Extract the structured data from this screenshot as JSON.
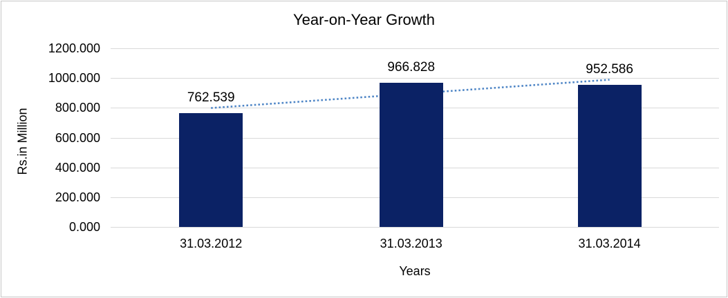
{
  "frame": {
    "border_color": "#c6c6c6",
    "background_color": "#ffffff"
  },
  "chart_data": {
    "type": "bar",
    "title": "Year-on-Year Growth",
    "xlabel": "Years",
    "ylabel": "Rs.in Million",
    "categories": [
      "31.03.2012",
      "31.03.2013",
      "31.03.2014"
    ],
    "values": [
      762.539,
      966.828,
      952.586
    ],
    "value_labels": [
      "762.539",
      "966.828",
      "952.586"
    ],
    "ylim": [
      0,
      1200
    ],
    "ytick_step": 200,
    "ytick_labels": [
      "0.000",
      "200.000",
      "400.000",
      "600.000",
      "800.000",
      "1000.000",
      "1200.000"
    ],
    "grid": true,
    "legend": false,
    "trendline": {
      "type": "linear",
      "style": "dotted"
    },
    "colors": {
      "bar": "#0b2265",
      "trendline": "#4f86c6",
      "gridline": "#d9d9d9",
      "text": "#000000"
    }
  }
}
